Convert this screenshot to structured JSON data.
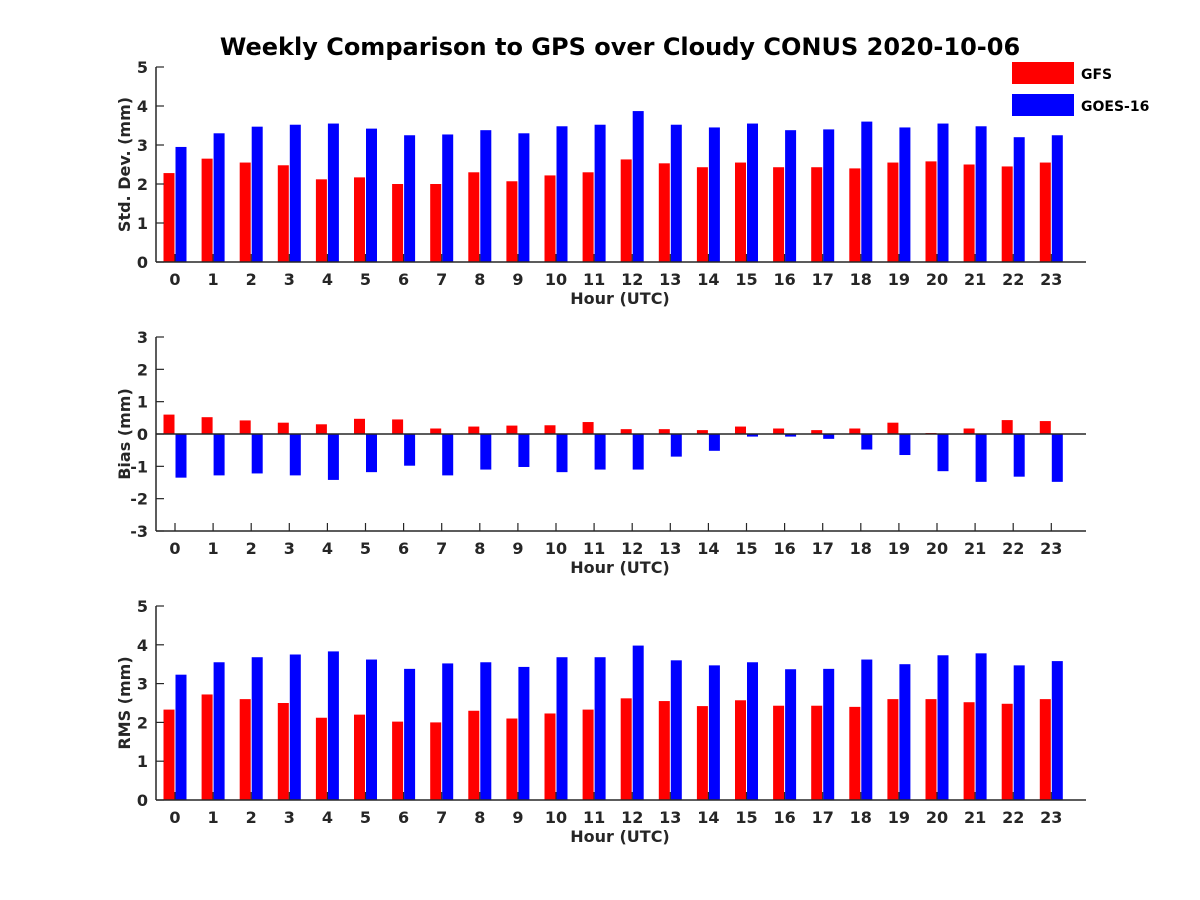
{
  "figure": {
    "title": "Weekly Comparison to GPS over Cloudy CONUS 2020-10-06"
  },
  "legend": [
    {
      "name": "GFS",
      "color": "#ff0000"
    },
    {
      "name": "GOES-16",
      "color": "#0000ff"
    }
  ],
  "chart_data": [
    {
      "type": "bar",
      "ylabel": "Std. Dev. (mm)",
      "xlabel": "Hour (UTC)",
      "ylim": [
        0,
        5
      ],
      "yticks": [
        0,
        1,
        2,
        3,
        4,
        5
      ],
      "categories": [
        "0",
        "1",
        "2",
        "3",
        "4",
        "5",
        "6",
        "7",
        "8",
        "9",
        "10",
        "11",
        "12",
        "13",
        "14",
        "15",
        "16",
        "17",
        "18",
        "19",
        "20",
        "21",
        "22",
        "23"
      ],
      "legend_position": "top-right",
      "series": [
        {
          "name": "GFS",
          "color": "#ff0000",
          "values": [
            2.28,
            2.65,
            2.55,
            2.48,
            2.12,
            2.17,
            2.0,
            2.0,
            2.3,
            2.07,
            2.22,
            2.3,
            2.63,
            2.53,
            2.43,
            2.55,
            2.43,
            2.43,
            2.4,
            2.55,
            2.58,
            2.5,
            2.45,
            2.55
          ]
        },
        {
          "name": "GOES-16",
          "color": "#0000ff",
          "values": [
            2.95,
            3.3,
            3.47,
            3.52,
            3.55,
            3.42,
            3.25,
            3.27,
            3.38,
            3.3,
            3.48,
            3.52,
            3.87,
            3.52,
            3.45,
            3.55,
            3.38,
            3.4,
            3.6,
            3.45,
            3.55,
            3.48,
            3.2,
            3.25
          ]
        }
      ]
    },
    {
      "type": "bar",
      "ylabel": "Bias (mm)",
      "xlabel": "Hour (UTC)",
      "ylim": [
        -3,
        3
      ],
      "yticks": [
        -3,
        -2,
        -1,
        0,
        1,
        2,
        3
      ],
      "categories": [
        "0",
        "1",
        "2",
        "3",
        "4",
        "5",
        "6",
        "7",
        "8",
        "9",
        "10",
        "11",
        "12",
        "13",
        "14",
        "15",
        "16",
        "17",
        "18",
        "19",
        "20",
        "21",
        "22",
        "23"
      ],
      "series": [
        {
          "name": "GFS",
          "color": "#ff0000",
          "values": [
            0.6,
            0.52,
            0.42,
            0.35,
            0.3,
            0.47,
            0.45,
            0.17,
            0.23,
            0.26,
            0.27,
            0.37,
            0.15,
            0.15,
            0.12,
            0.23,
            0.17,
            0.12,
            0.17,
            0.35,
            0.03,
            0.17,
            0.43,
            0.4
          ]
        },
        {
          "name": "GOES-16",
          "color": "#0000ff",
          "values": [
            -1.35,
            -1.28,
            -1.22,
            -1.28,
            -1.42,
            -1.18,
            -0.98,
            -1.28,
            -1.1,
            -1.02,
            -1.18,
            -1.1,
            -1.1,
            -0.7,
            -0.52,
            -0.08,
            -0.08,
            -0.15,
            -0.48,
            -0.65,
            -1.15,
            -1.48,
            -1.32,
            -1.48
          ]
        }
      ]
    },
    {
      "type": "bar",
      "ylabel": "RMS (mm)",
      "xlabel": "Hour (UTC)",
      "ylim": [
        0,
        5
      ],
      "yticks": [
        0,
        1,
        2,
        3,
        4,
        5
      ],
      "categories": [
        "0",
        "1",
        "2",
        "3",
        "4",
        "5",
        "6",
        "7",
        "8",
        "9",
        "10",
        "11",
        "12",
        "13",
        "14",
        "15",
        "16",
        "17",
        "18",
        "19",
        "20",
        "21",
        "22",
        "23"
      ],
      "series": [
        {
          "name": "GFS",
          "color": "#ff0000",
          "values": [
            2.33,
            2.72,
            2.6,
            2.5,
            2.12,
            2.2,
            2.02,
            2.0,
            2.3,
            2.1,
            2.23,
            2.33,
            2.62,
            2.55,
            2.42,
            2.57,
            2.43,
            2.43,
            2.4,
            2.6,
            2.6,
            2.52,
            2.48,
            2.6
          ]
        },
        {
          "name": "GOES-16",
          "color": "#0000ff",
          "values": [
            3.23,
            3.55,
            3.68,
            3.75,
            3.83,
            3.62,
            3.38,
            3.52,
            3.55,
            3.43,
            3.68,
            3.68,
            3.98,
            3.6,
            3.47,
            3.55,
            3.37,
            3.38,
            3.62,
            3.5,
            3.73,
            3.78,
            3.47,
            3.58
          ]
        }
      ]
    }
  ]
}
